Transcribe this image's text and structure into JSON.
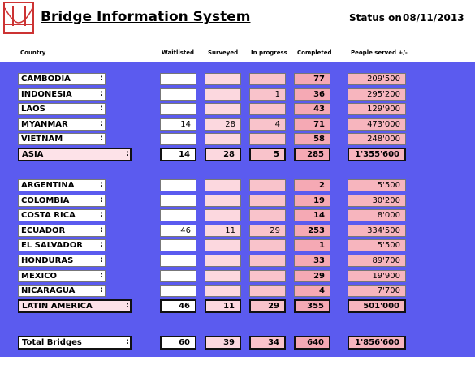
{
  "header": {
    "title": "Bridge Information System",
    "status_label": "Status on",
    "date": "08/11/2013"
  },
  "columns": [
    "Country",
    "Waitlisted",
    "Surveyed",
    "In progress",
    "Completed",
    "People served +/-"
  ],
  "separator": ":",
  "groups": [
    {
      "rows": [
        {
          "country": "CAMBODIA",
          "values": [
            null,
            null,
            null,
            77,
            "209'500"
          ]
        },
        {
          "country": "INDONESIA",
          "values": [
            null,
            null,
            1,
            36,
            "295'200"
          ]
        },
        {
          "country": "LAOS",
          "values": [
            null,
            null,
            null,
            43,
            "129'900"
          ]
        },
        {
          "country": "MYANMAR",
          "values": [
            14,
            28,
            4,
            71,
            "473'000"
          ]
        },
        {
          "country": "VIETNAM",
          "values": [
            null,
            null,
            null,
            58,
            "248'000"
          ]
        }
      ],
      "subtotal": {
        "label": "ASIA",
        "values": [
          14,
          28,
          5,
          285,
          "1'355'600"
        ]
      }
    },
    {
      "rows": [
        {
          "country": "ARGENTINA",
          "values": [
            null,
            null,
            null,
            2,
            "5'500"
          ]
        },
        {
          "country": "COLOMBIA",
          "values": [
            null,
            null,
            null,
            19,
            "30'200"
          ]
        },
        {
          "country": "COSTA RICA",
          "values": [
            null,
            null,
            null,
            14,
            "8'000"
          ]
        },
        {
          "country": "ECUADOR",
          "values": [
            46,
            11,
            29,
            253,
            "334'500"
          ]
        },
        {
          "country": "EL SALVADOR",
          "values": [
            null,
            null,
            null,
            1,
            "5'500"
          ]
        },
        {
          "country": "HONDURAS",
          "values": [
            null,
            null,
            null,
            33,
            "89'700"
          ]
        },
        {
          "country": "MEXICO",
          "values": [
            null,
            null,
            null,
            29,
            "19'900"
          ]
        },
        {
          "country": "NICARAGUA",
          "values": [
            null,
            null,
            null,
            4,
            "7'700"
          ]
        }
      ],
      "subtotal": {
        "label": "LATIN AMERICA",
        "values": [
          46,
          11,
          29,
          355,
          "501'000"
        ]
      }
    }
  ],
  "total": {
    "label": "Total Bridges",
    "values": [
      60,
      39,
      34,
      640,
      "1'856'600"
    ]
  }
}
